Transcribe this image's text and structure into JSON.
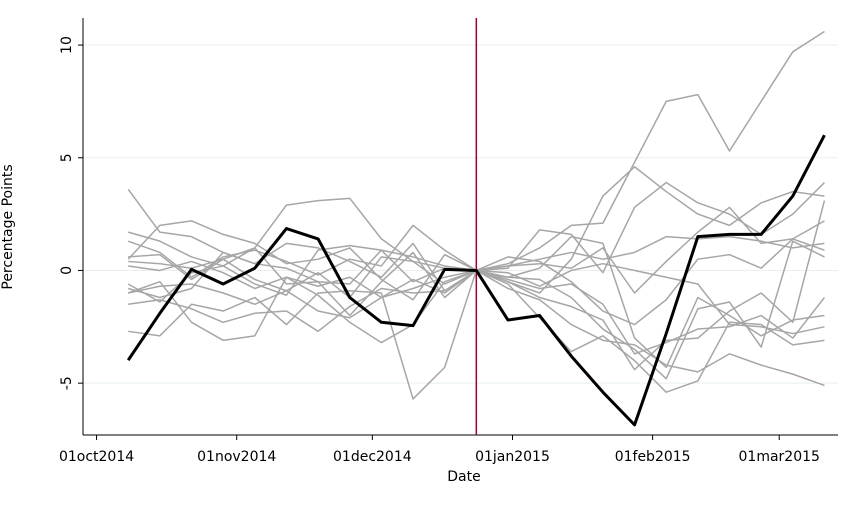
{
  "chart_data": {
    "type": "line",
    "x_label": "Date",
    "y_label": "Percentage Points",
    "x": [
      "2014-10-08",
      "2014-10-15",
      "2014-10-22",
      "2014-10-29",
      "2014-11-05",
      "2014-11-12",
      "2014-11-19",
      "2014-11-26",
      "2014-12-03",
      "2014-12-10",
      "2014-12-17",
      "2014-12-24",
      "2014-12-31",
      "2015-01-07",
      "2015-01-14",
      "2015-01-21",
      "2015-01-28",
      "2015-02-04",
      "2015-02-11",
      "2015-02-18",
      "2015-02-25",
      "2015-03-04",
      "2015-03-11"
    ],
    "xlim": [
      "2014-09-28",
      "2015-03-14"
    ],
    "xticks": [
      {
        "value": "2014-10-01",
        "label": "01oct2014"
      },
      {
        "value": "2014-11-01",
        "label": "01nov2014"
      },
      {
        "value": "2014-12-01",
        "label": "01dec2014"
      },
      {
        "value": "2015-01-01",
        "label": "01jan2015"
      },
      {
        "value": "2015-02-01",
        "label": "01feb2015"
      },
      {
        "value": "2015-03-01",
        "label": "01mar2015"
      }
    ],
    "ylim": [
      -7.3,
      11.2
    ],
    "yticks": [
      -5,
      0,
      5,
      10
    ],
    "grid": true,
    "vline": {
      "x": "2014-12-24",
      "color": "#990033"
    },
    "series": [
      {
        "color": "#a6a6a6",
        "values": [
          3.6,
          1.7,
          1.5,
          0.8,
          0.3,
          0.1,
          -0.5,
          -0.6,
          0.9,
          0.6,
          0.2,
          0,
          0.3,
          1.0,
          2.0,
          2.1,
          4.8,
          7.5,
          7.8,
          5.3,
          7.5,
          9.7,
          10.6
        ]
      },
      {
        "color": "#a6a6a6",
        "values": [
          1.7,
          1.3,
          0.6,
          0.2,
          1.0,
          2.9,
          3.1,
          3.2,
          1.4,
          0.4,
          0.1,
          0,
          -0.5,
          -1.0,
          0.5,
          3.3,
          4.6,
          3.5,
          2.5,
          2.0,
          3.0,
          3.5,
          3.3
        ]
      },
      {
        "color": "#a6a6a6",
        "values": [
          0.5,
          2.0,
          2.2,
          1.6,
          1.2,
          0.3,
          0.5,
          1.0,
          -0.4,
          -1.3,
          0.7,
          0,
          0.1,
          1.8,
          1.6,
          -0.1,
          2.8,
          3.9,
          3.0,
          2.5,
          1.6,
          2.5,
          3.9
        ]
      },
      {
        "color": "#a6a6a6",
        "values": [
          -2.7,
          -2.9,
          -1.5,
          -1.8,
          -1.2,
          -2.4,
          -1.0,
          -0.9,
          -1.0,
          -5.7,
          -4.3,
          0,
          -0.8,
          -1.3,
          -2.4,
          -3.1,
          -3.3,
          -4.2,
          -4.5,
          -3.7,
          -4.2,
          -4.6,
          -5.1
        ]
      },
      {
        "color": "#a6a6a6",
        "values": [
          -1.0,
          -0.5,
          -2.3,
          -3.1,
          -2.9,
          -0.3,
          -1.1,
          -2.3,
          -3.2,
          -2.4,
          -0.5,
          0,
          -0.6,
          -2.1,
          -3.6,
          -2.9,
          -4.0,
          -5.4,
          -4.9,
          -2.3,
          -2.4,
          -3.3,
          -3.1
        ]
      },
      {
        "color": "#a6a6a6",
        "values": [
          0.6,
          0.7,
          -0.4,
          0.5,
          1.0,
          -0.6,
          -0.5,
          -2.0,
          -0.5,
          0.8,
          -1.2,
          0,
          -0.3,
          0.1,
          1.5,
          1.2,
          -3.0,
          -4.3,
          -1.2,
          -2.0,
          -2.9,
          -2.2,
          -2.0
        ]
      },
      {
        "color": "#a6a6a6",
        "values": [
          -0.8,
          -1.2,
          -0.8,
          0.8,
          0.3,
          1.2,
          1.0,
          0.4,
          -0.3,
          1.2,
          -0.9,
          0,
          0.6,
          0.4,
          -0.5,
          -1.8,
          -2.4,
          -1.3,
          0.5,
          0.7,
          0.1,
          1.4,
          2.2
        ]
      },
      {
        "color": "#a6a6a6",
        "values": [
          1.3,
          0.8,
          -0.3,
          0.6,
          0.9,
          0.4,
          -0.2,
          0.5,
          0.2,
          2.0,
          0.9,
          0,
          0.2,
          0.3,
          0.1,
          1.0,
          -1.0,
          0.4,
          1.7,
          2.8,
          1.2,
          1.4,
          0.9
        ]
      },
      {
        "color": "#a6a6a6",
        "values": [
          -0.6,
          -1.4,
          -0.1,
          0.2,
          -0.6,
          -1.1,
          0.9,
          1.1,
          0.9,
          -0.5,
          0.1,
          0,
          -0.3,
          -0.4,
          -1.2,
          -2.6,
          -3.5,
          -4.8,
          -1.7,
          -1.4,
          -3.4,
          1.3,
          0.6
        ]
      },
      {
        "color": "#a6a6a6",
        "values": [
          0.4,
          0.3,
          0.1,
          0.5,
          -0.4,
          -0.9,
          -0.1,
          -1.2,
          0.6,
          0.4,
          -0.6,
          0,
          -0.1,
          -0.7,
          0.0,
          0.3,
          0.0,
          -0.3,
          -0.6,
          -2.4,
          -2.5,
          -2.8,
          -2.5
        ]
      },
      {
        "color": "#a6a6a6",
        "values": [
          -1.5,
          -1.3,
          -1.7,
          -2.3,
          -1.9,
          -1.8,
          -2.7,
          -1.6,
          -0.8,
          -1.0,
          -0.9,
          0,
          -0.4,
          -0.8,
          -0.6,
          -1.5,
          -3.7,
          -3.2,
          -2.6,
          -2.5,
          -2.0,
          -3.0,
          -1.2
        ]
      },
      {
        "color": "#a6a6a6",
        "values": [
          0.2,
          0.0,
          0.4,
          -0.1,
          -0.8,
          -0.3,
          -0.7,
          -0.3,
          -1.2,
          -0.8,
          -0.3,
          0,
          0.2,
          0.5,
          0.8,
          0.5,
          0.8,
          1.5,
          1.4,
          1.5,
          1.3,
          1.0,
          1.2
        ]
      },
      {
        "color": "#a6a6a6",
        "values": [
          -1.0,
          -0.7,
          -0.6,
          -1.0,
          -1.5,
          -0.9,
          -1.8,
          -2.1,
          -1.2,
          -0.4,
          -1.0,
          0,
          -0.5,
          -1.2,
          -1.6,
          -2.2,
          -4.4,
          -3.1,
          -3.0,
          -1.8,
          -1.0,
          -2.3,
          3.1
        ]
      },
      {
        "color": "#000000",
        "values": [
          -3.98,
          -1.9,
          0.05,
          -0.6,
          0.1,
          1.86,
          1.4,
          -1.2,
          -2.3,
          -2.45,
          0.05,
          0,
          -2.2,
          -2.0,
          -3.8,
          -5.4,
          -6.85,
          -2.8,
          1.5,
          1.6,
          1.6,
          3.3,
          6.0
        ]
      }
    ]
  }
}
